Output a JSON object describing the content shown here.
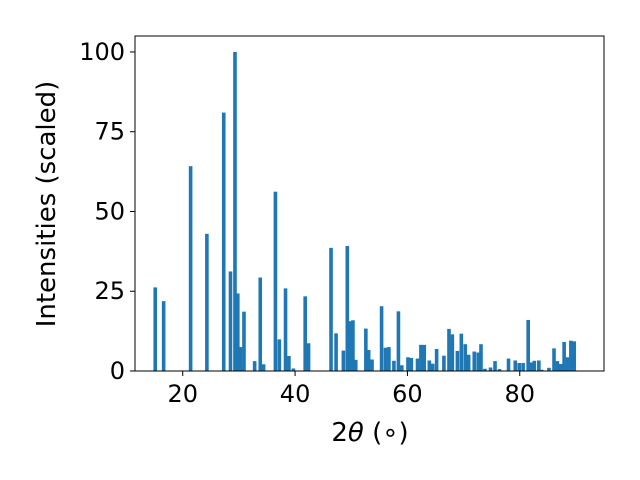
{
  "chart_data": {
    "type": "bar",
    "title": "",
    "xlabel_main": "2",
    "xlabel_symbol": "θ",
    "xlabel_unit": " (∘)",
    "ylabel": "Intensities (scaled)",
    "xlim": [
      11.5,
      95
    ],
    "ylim": [
      0,
      105
    ],
    "x_ticks": [
      20,
      40,
      60,
      80
    ],
    "y_ticks": [
      0,
      25,
      50,
      75,
      100
    ],
    "bar_color": "#1f77b4",
    "grid": false,
    "x": [
      15.1,
      16.6,
      21.4,
      24.3,
      27.3,
      28.5,
      29.3,
      29.8,
      30.3,
      30.9,
      32.8,
      33.8,
      34.4,
      36.5,
      37.2,
      38.3,
      38.9,
      39.7,
      41.8,
      42.4,
      46.4,
      47.3,
      48.6,
      49.3,
      49.8,
      50.3,
      50.8,
      52.6,
      53.1,
      53.7,
      55.4,
      56.1,
      56.7,
      57.6,
      58.4,
      59.0,
      60.1,
      60.7,
      61.8,
      62.4,
      63.0,
      63.9,
      64.5,
      65.2,
      66.5,
      67.4,
      68.0,
      68.9,
      69.6,
      70.3,
      70.9,
      71.9,
      72.6,
      73.1,
      73.8,
      74.8,
      75.6,
      76.4,
      78.0,
      79.2,
      79.9,
      80.6,
      81.5,
      82.1,
      82.6,
      83.4,
      83.9,
      85.2,
      86.1,
      86.7,
      87.3,
      87.9,
      88.5,
      89.1,
      89.7
    ],
    "values": [
      26.2,
      21.9,
      64.2,
      43.0,
      81.0,
      31.2,
      100.0,
      24.3,
      7.5,
      18.6,
      3.1,
      29.3,
      2.1,
      56.2,
      9.9,
      25.9,
      4.7,
      0.8,
      23.4,
      8.7,
      38.6,
      11.8,
      6.4,
      39.2,
      15.6,
      15.9,
      3.5,
      13.3,
      6.6,
      3.6,
      20.3,
      7.3,
      7.5,
      3.2,
      18.7,
      1.8,
      4.3,
      4.1,
      3.9,
      8.2,
      8.2,
      3.3,
      2.3,
      6.9,
      4.8,
      13.2,
      11.5,
      6.3,
      11.7,
      8.4,
      5.1,
      6.1,
      5.8,
      8.4,
      0.7,
      1.1,
      3.1,
      0.6,
      3.9,
      3.3,
      2.5,
      2.5,
      16.0,
      2.7,
      3.2,
      3.3,
      0.4,
      1.0,
      7.1,
      3.1,
      2.2,
      9.1,
      4.3,
      9.5,
      9.3
    ]
  }
}
